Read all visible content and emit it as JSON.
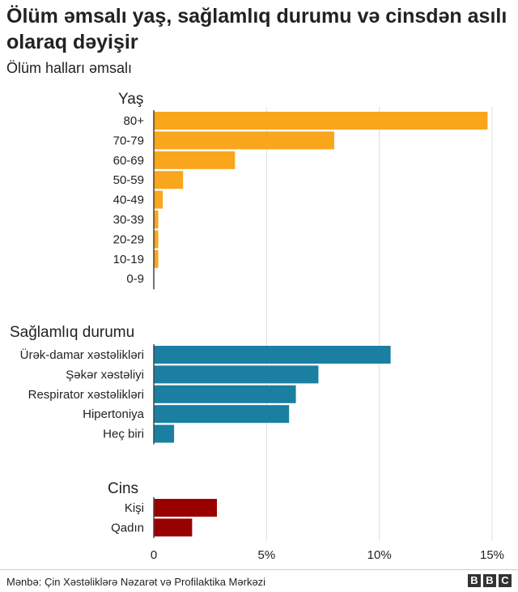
{
  "title": "Ölüm əmsalı yaş, sağlamlıq durumu və cinsdən asılı olaraq dəyişir",
  "subtitle": "Ölüm halları əmsalı",
  "source": "Mənbə: Çin Xəstəliklərə Nəzarət və Profilaktika Mərkəzi",
  "logo": {
    "letters": [
      "B",
      "B",
      "C"
    ]
  },
  "chart_data": {
    "type": "bar",
    "orientation": "horizontal",
    "xlim": [
      0,
      15
    ],
    "x_ticks": [
      0,
      5,
      10,
      15
    ],
    "x_tick_labels": [
      "0",
      "5%",
      "10%",
      "15%"
    ],
    "grid": true,
    "groups": [
      {
        "name": "Yaş",
        "color": "#f9a61c",
        "categories": [
          "80+",
          "70-79",
          "60-69",
          "50-59",
          "40-49",
          "30-39",
          "20-29",
          "10-19",
          "0-9"
        ],
        "values": [
          14.8,
          8.0,
          3.6,
          1.3,
          0.4,
          0.2,
          0.2,
          0.2,
          0
        ]
      },
      {
        "name": "Sağlamlıq durumu",
        "color": "#1a7fa0",
        "categories": [
          "Ürək-damar xəstəlikləri",
          "Şəkər xəstəliyi",
          "Respirator xəstəlikləri",
          "Hipertoniya",
          "Heç biri"
        ],
        "values": [
          10.5,
          7.3,
          6.3,
          6.0,
          0.9
        ]
      },
      {
        "name": "Cins",
        "color": "#990000",
        "categories": [
          "Kişi",
          "Qadın"
        ],
        "values": [
          2.8,
          1.7
        ]
      }
    ]
  }
}
